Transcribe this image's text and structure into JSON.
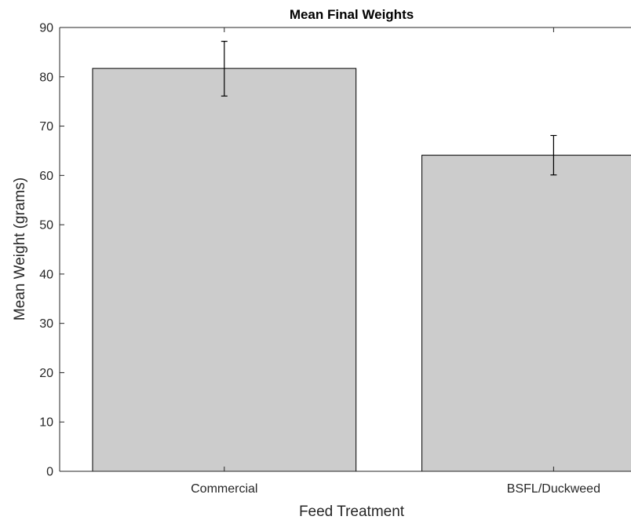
{
  "chart_data": {
    "type": "bar",
    "title": "Mean Final Weights",
    "xlabel": "Feed Treatment",
    "ylabel": "Mean Weight (grams)",
    "categories": [
      "Commercial",
      "BSFL/Duckweed"
    ],
    "values": [
      81.7,
      64.1
    ],
    "error_low": [
      76.1,
      60.1
    ],
    "error_high": [
      87.2,
      68.1
    ],
    "ylim": [
      0,
      90
    ],
    "yticks": [
      0,
      10,
      20,
      30,
      40,
      50,
      60,
      70,
      80,
      90
    ],
    "bar_color": "#cccccc",
    "edge_color": "#000000",
    "grid": false,
    "legend": "none"
  }
}
